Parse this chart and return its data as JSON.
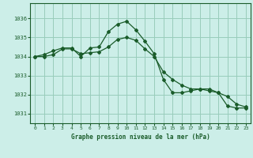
{
  "title": "Graphe pression niveau de la mer (hPa)",
  "background_color": "#cceee8",
  "grid_color": "#99ccbb",
  "line_color": "#1a5c2a",
  "xlim": [
    -0.5,
    23.5
  ],
  "ylim": [
    1030.5,
    1036.8
  ],
  "yticks": [
    1031,
    1032,
    1033,
    1034,
    1035,
    1036
  ],
  "xticks": [
    0,
    1,
    2,
    3,
    4,
    5,
    6,
    7,
    8,
    9,
    10,
    11,
    12,
    13,
    14,
    15,
    16,
    17,
    18,
    19,
    20,
    21,
    22,
    23
  ],
  "series1": [
    1034.0,
    1034.1,
    1034.3,
    1034.45,
    1034.45,
    1034.0,
    1034.45,
    1034.5,
    1035.3,
    1035.7,
    1035.85,
    1035.4,
    1034.8,
    1034.15,
    1032.8,
    1032.1,
    1032.1,
    1032.2,
    1032.3,
    1032.3,
    1032.1,
    1031.4,
    1031.3,
    1031.3
  ],
  "series2": [
    1034.0,
    1034.0,
    1034.1,
    1034.4,
    1034.4,
    1034.15,
    1034.2,
    1034.25,
    1034.5,
    1034.9,
    1035.0,
    1034.85,
    1034.4,
    1034.0,
    1033.2,
    1032.8,
    1032.5,
    1032.3,
    1032.3,
    1032.2,
    1032.1,
    1031.9,
    1031.5,
    1031.35
  ]
}
